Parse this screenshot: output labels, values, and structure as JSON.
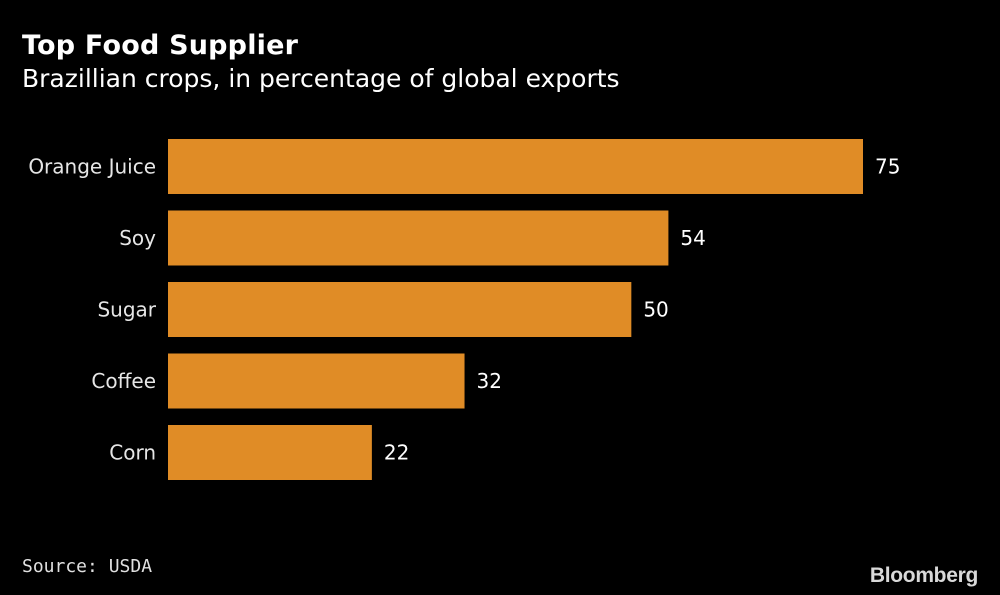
{
  "header": {
    "title": "Top Food Supplier",
    "subtitle": "Brazillian crops, in percentage of global exports"
  },
  "footer": {
    "source": "Source: USDA",
    "brand": "Bloomberg"
  },
  "colors": {
    "background": "#000000",
    "bar": "#e08c26",
    "text": "#ffffff"
  },
  "chart_data": {
    "type": "bar",
    "orientation": "horizontal",
    "title": "Top Food Supplier",
    "subtitle": "Brazillian crops, in percentage of global exports",
    "categories": [
      "Orange Juice",
      "Soy",
      "Sugar",
      "Coffee",
      "Corn"
    ],
    "values": [
      75,
      54,
      50,
      32,
      22
    ],
    "xlabel": "",
    "ylabel": "",
    "xlim": [
      0,
      75
    ],
    "grid": false,
    "legend": "none",
    "data_labels": true
  }
}
